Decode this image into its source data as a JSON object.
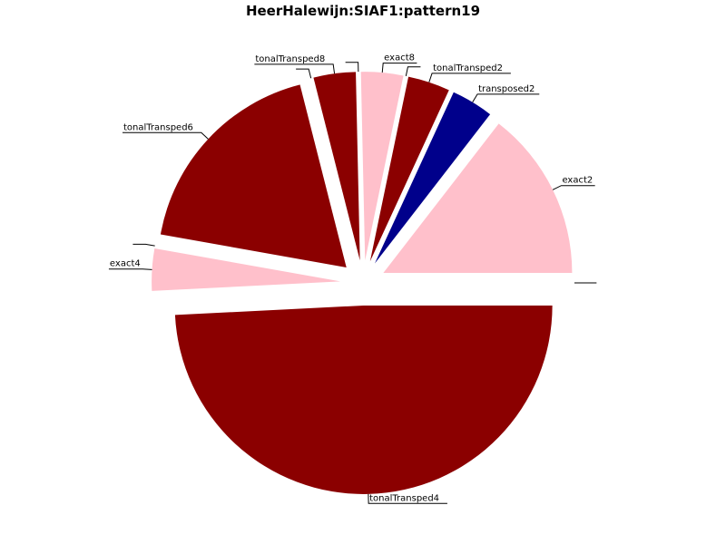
{
  "chart_data": {
    "type": "pie",
    "title": "HeerHalewijn:SIAF1:pattern19",
    "legend": "none",
    "slices": [
      {
        "label": "",
        "value": 0.0,
        "color": "#8b0000"
      },
      {
        "label": "exact2",
        "value": 14.5,
        "color": "#ffc0cb"
      },
      {
        "label": "transposed2",
        "value": 3.6,
        "color": "#00008b"
      },
      {
        "label": "tonalTransped2",
        "value": 3.6,
        "color": "#8b0000"
      },
      {
        "label": "",
        "value": 0.0,
        "color": "#ffc0cb"
      },
      {
        "label": "exact8",
        "value": 3.6,
        "color": "#ffc0cb"
      },
      {
        "label": "",
        "value": 0.0,
        "color": "#00008b"
      },
      {
        "label": "tonalTransped8",
        "value": 3.6,
        "color": "#8b0000"
      },
      {
        "label": "",
        "value": 0.0,
        "color": "#00008b"
      },
      {
        "label": "tonalTransped6",
        "value": 18.2,
        "color": "#8b0000"
      },
      {
        "label": "",
        "value": 0.0,
        "color": "#00008b"
      },
      {
        "label": "exact4",
        "value": 3.6,
        "color": "#ffc0cb"
      },
      {
        "label": "tonalTransped4",
        "value": 49.1,
        "color": "#8b0000"
      }
    ]
  }
}
